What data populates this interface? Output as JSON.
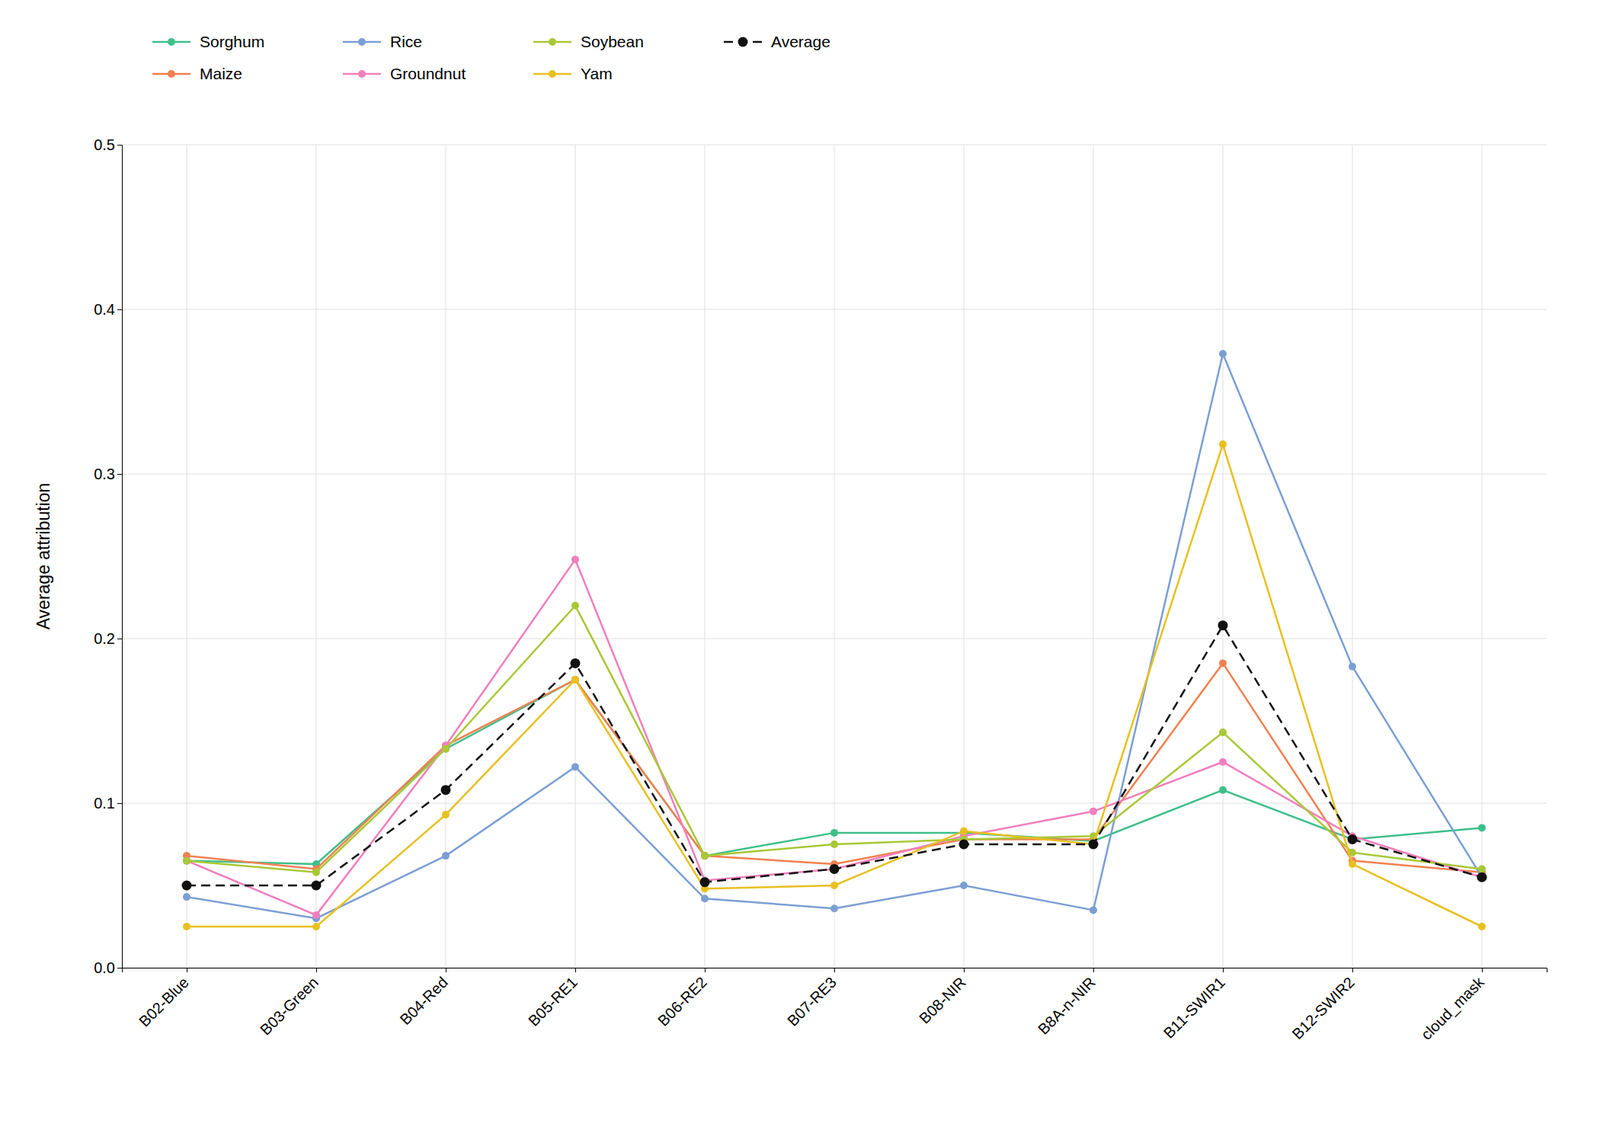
{
  "chart_data": {
    "type": "line",
    "ylabel": "Average attribution",
    "categories": [
      "B02-Blue",
      "B03-Green",
      "B04-Red",
      "B05-RE1",
      "B06-RE2",
      "B07-RE3",
      "B08-NIR",
      "B8A-n-NIR",
      "B11-SWIR1",
      "B12-SWIR2",
      "cloud_mask"
    ],
    "series": [
      {
        "name": "Sorghum",
        "color": "#3dbf8a",
        "marker": "circle",
        "line_style": "solid",
        "values": [
          0.065,
          0.063,
          0.133,
          0.175,
          0.068,
          0.082,
          0.082,
          0.077,
          0.108,
          0.078,
          0.085
        ]
      },
      {
        "name": "Maize",
        "color": "#f28050",
        "marker": "circle",
        "line_style": "solid",
        "values": [
          0.068,
          0.06,
          0.135,
          0.175,
          0.068,
          0.063,
          0.078,
          0.078,
          0.185,
          0.065,
          0.058
        ]
      },
      {
        "name": "Rice",
        "color": "#7b9fd4",
        "marker": "circle",
        "line_style": "solid",
        "values": [
          0.043,
          0.03,
          0.068,
          0.122,
          0.042,
          0.036,
          0.05,
          0.035,
          0.373,
          0.183,
          0.055
        ]
      },
      {
        "name": "Groundnut",
        "color": "#f07fbe",
        "marker": "circle",
        "line_style": "solid",
        "values": [
          0.065,
          0.032,
          0.135,
          0.248,
          0.053,
          0.06,
          0.08,
          0.095,
          0.125,
          0.08,
          0.055
        ]
      },
      {
        "name": "Soybean",
        "color": "#a8c835",
        "marker": "circle",
        "line_style": "solid",
        "values": [
          0.065,
          0.058,
          0.133,
          0.22,
          0.068,
          0.075,
          0.078,
          0.08,
          0.143,
          0.07,
          0.06
        ]
      },
      {
        "name": "Yam",
        "color": "#e8c020",
        "marker": "circle",
        "line_style": "solid",
        "values": [
          0.025,
          0.025,
          0.093,
          0.175,
          0.048,
          0.05,
          0.083,
          0.075,
          0.318,
          0.063,
          0.025
        ]
      },
      {
        "name": "Average",
        "color": "#111111",
        "marker": "circle",
        "line_style": "dashed",
        "values": [
          0.05,
          0.05,
          0.108,
          0.185,
          0.052,
          0.06,
          0.075,
          0.075,
          0.208,
          0.078,
          0.055
        ]
      }
    ],
    "ylim": [
      0.0,
      0.5
    ],
    "yticks": [
      {
        "value": 0.0,
        "label": "0.0"
      },
      0.1,
      0.2,
      0.3,
      0.4,
      0.5
    ],
    "grid": true,
    "legend": "top"
  }
}
